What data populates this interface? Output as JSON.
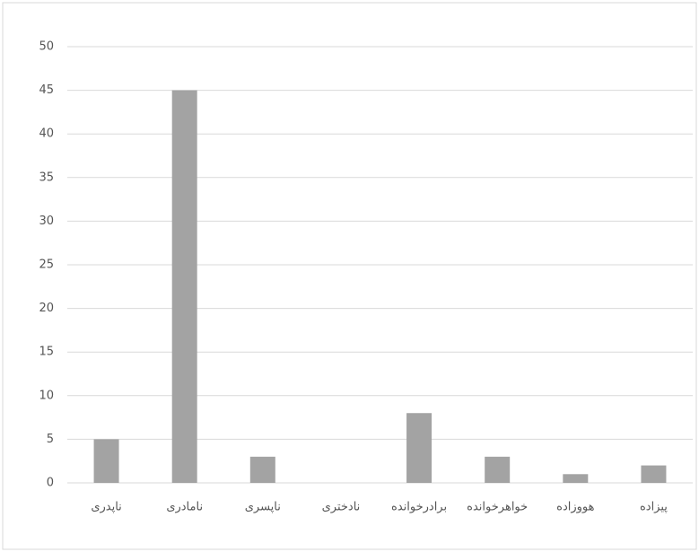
{
  "chart_data": {
    "type": "bar",
    "categories": [
      "ناپدری",
      "نامادری",
      "ناپسری",
      "نادختری",
      "برادرخوانده",
      "خواهرخوانده",
      "هووزاده",
      "پیزاده"
    ],
    "values": [
      5,
      45,
      3,
      0,
      8,
      3,
      1,
      2
    ],
    "color": "#a3a3a3",
    "ylim": [
      0,
      50
    ],
    "yticks": [
      0,
      5,
      10,
      15,
      20,
      25,
      30,
      35,
      40,
      45,
      50
    ],
    "grid": true
  }
}
